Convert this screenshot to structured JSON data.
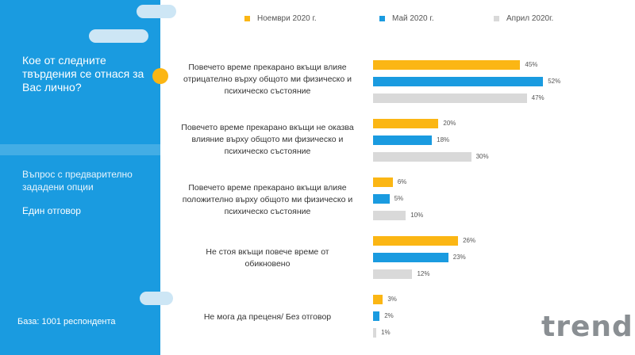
{
  "panel": {
    "question": "Кое от следните твърдения се отнася за Вас лично?",
    "note": "Въпрос с предварително зададени опции",
    "answer_type": "Един отговор",
    "base": "База: 1001 респондента"
  },
  "logo": {
    "text": "trend"
  },
  "colors": {
    "panel": "#1a9be0",
    "accent": "#fbb614"
  },
  "chart_data": {
    "type": "bar",
    "orientation": "horizontal",
    "legend_position": "top",
    "grid": false,
    "xlim": [
      0,
      60
    ],
    "categories": [
      "Повечето време прекарано вкъщи влияе отрицателно върху общото ми физическо и психическо състояние",
      "Повечето време прекарано вкъщи не оказва влияние върху общото ми физическо и психическо състояние",
      "Повечето време прекарано вкъщи влияе положително върху общото ми физическо и психическо състояние",
      "Не стоя вкъщи повече време от обикновено",
      "Не мога да преценя/ Без отговор"
    ],
    "series": [
      {
        "name": "Ноември 2020 г.",
        "color": "#fbb614",
        "values": [
          45,
          20,
          6,
          26,
          3
        ],
        "labels": [
          "45%",
          "20%",
          "6%",
          "26%",
          "3%"
        ]
      },
      {
        "name": "Май 2020 г.",
        "color": "#1a9be0",
        "values": [
          52,
          18,
          5,
          23,
          2
        ],
        "labels": [
          "52%",
          "18%",
          "5%",
          "23%",
          "2%"
        ]
      },
      {
        "name": "Април 2020г.",
        "color": "#d9d9d9",
        "values": [
          47,
          30,
          10,
          12,
          1
        ],
        "labels": [
          "47%",
          "30%",
          "10%",
          "12%",
          "1%"
        ]
      }
    ]
  }
}
